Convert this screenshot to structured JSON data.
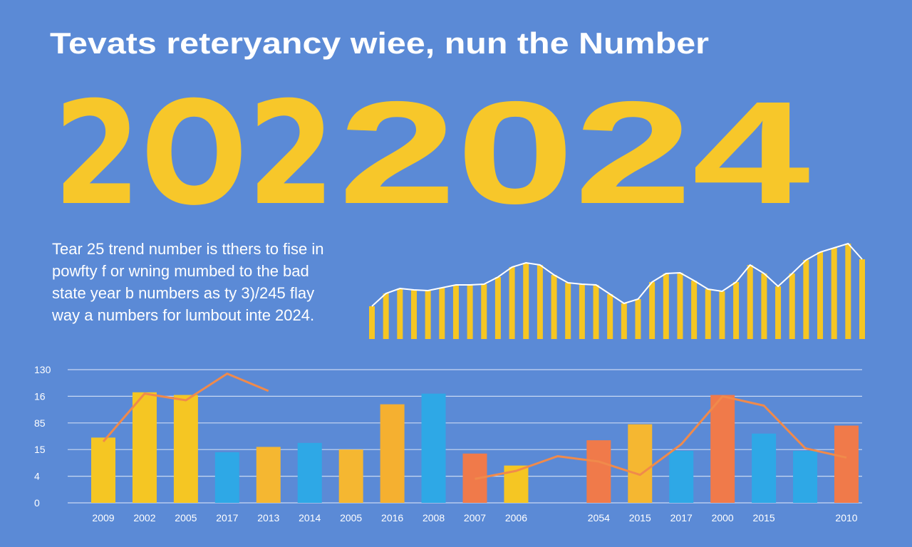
{
  "header": {
    "title": "Tevats reteryancy wiee, nun the Number",
    "big_number": [
      "2O2",
      "2024"
    ],
    "paragraph": [
      "Tear 25 trend number is tthers to fise in",
      "powfty f or wning mumbed to the bad",
      "state year b numbers as ty 3)/245 flay",
      "way a numbers for lumbout inte 2024."
    ]
  },
  "chart_data": [
    {
      "type": "bar",
      "color": "#f5c623",
      "outline_color": "#ffffff",
      "ylim": [
        0,
        140
      ],
      "values": [
        46,
        64,
        71,
        69,
        68,
        72,
        76,
        76,
        77,
        87,
        101,
        107,
        104,
        90,
        79,
        77,
        76,
        63,
        50,
        56,
        80,
        92,
        93,
        82,
        70,
        67,
        80,
        104,
        92,
        74,
        92,
        111,
        122,
        128,
        134,
        112
      ]
    },
    {
      "type": "bar",
      "grid": true,
      "ylim": [
        0,
        100
      ],
      "yticks": [
        0,
        {
          "value": 20,
          "label": "4"
        },
        {
          "value": 40,
          "label": "15"
        },
        {
          "value": 60,
          "label": "85"
        },
        {
          "value": 80,
          "label": "16"
        },
        {
          "value": 100,
          "label": "130"
        }
      ],
      "categories": [
        "2009",
        "2002",
        "2005",
        "2017",
        "2013",
        "2014",
        "2005",
        "2016",
        "2008",
        "2007",
        "2006",
        null,
        "2054",
        "2015",
        "2017",
        "2000",
        "2015",
        null,
        "2010"
      ],
      "values": [
        49,
        83,
        81,
        38,
        42,
        45,
        40,
        74,
        82,
        37,
        28,
        null,
        47,
        59,
        39,
        81,
        52,
        39,
        58
      ],
      "colors": [
        "#f5c623",
        "#f5c623",
        "#f5c623",
        "#2ea8e6",
        "#f5b731",
        "#2ea8e6",
        "#f5b731",
        "#f5b030",
        "#2ea8e6",
        "#f07a4a",
        "#f5c623",
        null,
        "#f07a4a",
        "#f5b731",
        "#2ea8e6",
        "#f07a4a",
        "#2ea8e6",
        "#2ea8e6",
        "#f07a4a"
      ],
      "line": {
        "color": "#f08a4b",
        "values": [
          46,
          82,
          77,
          97,
          84,
          null,
          null,
          null,
          null,
          18,
          24,
          35,
          31,
          21,
          44,
          80,
          73,
          41,
          34
        ]
      }
    }
  ]
}
